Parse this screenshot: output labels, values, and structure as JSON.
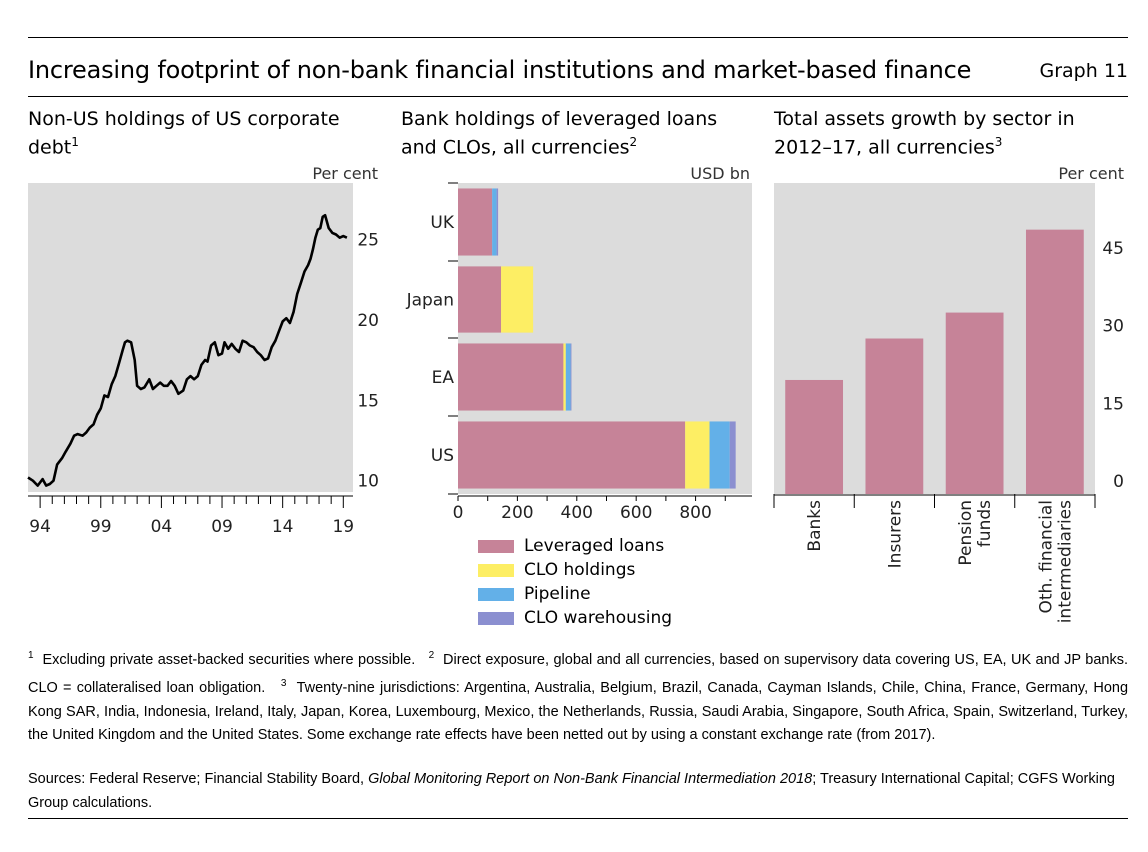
{
  "header": {
    "title": "Increasing footprint of non-bank financial institutions and market-based finance",
    "graph_label": "Graph 11"
  },
  "chart_data": [
    {
      "type": "line",
      "title": "Non-US holdings of US corporate debt",
      "title_footnote": "1",
      "unit": "Per cent",
      "x_ticks": [
        "94",
        "99",
        "04",
        "09",
        "14",
        "19"
      ],
      "xlim": [
        1993.0,
        2019.8
      ],
      "y_ticks": [
        "10",
        "15",
        "20",
        "25"
      ],
      "ylim": [
        9.3,
        28.5
      ],
      "grid": false,
      "series": [
        {
          "x": [
            1993.0,
            1993.4,
            1993.8,
            1994.2,
            1994.5,
            1994.8,
            1995.1,
            1995.4,
            1995.8,
            1996.1,
            1996.5,
            1996.8,
            1997.1,
            1997.5,
            1997.8,
            1998.1,
            1998.4,
            1998.7,
            1999.0,
            1999.3,
            1999.6,
            1999.9,
            2000.2,
            2000.5,
            2000.8,
            2001.0,
            2001.2,
            2001.5,
            2001.8,
            2002.0,
            2002.3,
            2002.6,
            2003.0,
            2003.3,
            2003.6,
            2003.9,
            2004.2,
            2004.5,
            2004.8,
            2005.1,
            2005.4,
            2005.8,
            2006.1,
            2006.4,
            2006.7,
            2007.0,
            2007.3,
            2007.6,
            2007.8,
            2008.1,
            2008.4,
            2008.7,
            2009.0,
            2009.2,
            2009.5,
            2009.8,
            2010.1,
            2010.4,
            2010.7,
            2011.0,
            2011.3,
            2011.6,
            2011.9,
            2012.2,
            2012.5,
            2012.8,
            2013.1,
            2013.4,
            2013.7,
            2014.0,
            2014.3,
            2014.6,
            2014.9,
            2015.2,
            2015.5,
            2015.8,
            2016.1,
            2016.3,
            2016.5,
            2016.7,
            2016.9,
            2017.1,
            2017.3,
            2017.5,
            2017.8,
            2018.1,
            2018.4,
            2018.7,
            2019.0,
            2019.3
          ],
          "y": [
            10.2,
            10.0,
            9.7,
            10.1,
            9.7,
            9.8,
            10.0,
            11.0,
            11.4,
            11.8,
            12.3,
            12.8,
            12.9,
            12.8,
            13.0,
            13.3,
            13.5,
            14.1,
            14.5,
            15.3,
            15.2,
            16.0,
            16.5,
            17.3,
            18.1,
            18.6,
            18.7,
            18.6,
            17.5,
            15.9,
            15.7,
            15.8,
            16.3,
            15.7,
            15.9,
            16.1,
            15.9,
            15.9,
            16.2,
            15.9,
            15.4,
            15.6,
            16.3,
            16.5,
            16.3,
            16.5,
            17.2,
            17.5,
            17.4,
            18.4,
            18.6,
            17.8,
            17.9,
            18.6,
            18.2,
            18.5,
            18.2,
            18.0,
            18.7,
            18.6,
            18.4,
            18.3,
            18.0,
            17.8,
            17.5,
            17.6,
            18.3,
            18.7,
            19.3,
            19.9,
            20.1,
            19.8,
            20.5,
            21.6,
            22.3,
            23.0,
            23.4,
            23.8,
            24.4,
            25.1,
            25.6,
            25.7,
            26.4,
            26.5,
            25.7,
            25.4,
            25.3,
            25.1,
            25.2,
            25.1
          ]
        }
      ]
    },
    {
      "type": "bar",
      "orientation": "horizontal",
      "stacked": true,
      "title": "Bank holdings of leveraged loans and CLOs, all currencies",
      "title_footnote": "2",
      "unit": "USD bn",
      "categories": [
        "UK",
        "Japan",
        "EA",
        "US"
      ],
      "x_ticks": [
        "0",
        "200",
        "400",
        "600",
        "800"
      ],
      "xlim": [
        0,
        990
      ],
      "series": [
        {
          "name": "Leveraged loans",
          "color": "#c68398",
          "values": [
            115,
            145,
            355,
            765
          ]
        },
        {
          "name": "CLO holdings",
          "color": "#fdee64",
          "values": [
            0,
            108,
            8,
            82
          ]
        },
        {
          "name": "Pipeline",
          "color": "#63b0e8",
          "values": [
            15,
            0,
            16,
            68
          ]
        },
        {
          "name": "CLO warehousing",
          "color": "#8b8fd0",
          "values": [
            5,
            0,
            3,
            20
          ]
        }
      ]
    },
    {
      "type": "bar",
      "title": "Total assets growth by sector in 2012–17, all currencies",
      "title_footnote": "3",
      "unit": "Per cent",
      "categories": [
        "Banks",
        "Insurers",
        "Pension funds",
        "Oth. financial intermediaries"
      ],
      "category_lines": [
        [
          "Banks"
        ],
        [
          "Insurers"
        ],
        [
          "Pension",
          "funds"
        ],
        [
          "Oth. financial",
          "intermediaries"
        ]
      ],
      "values": [
        19.5,
        27.5,
        32.5,
        48.5
      ],
      "color": "#c68398",
      "y_ticks": [
        "0",
        "15",
        "30",
        "45"
      ],
      "ylim": [
        -2.5,
        57.5
      ]
    }
  ],
  "footnotes": {
    "n1": "1",
    "t1": "Excluding private asset-backed securities where possible.",
    "n2": "2",
    "t2": "Direct exposure, global and all currencies, based on supervisory data covering US, EA, UK and JP banks. CLO = collateralised loan obligation.",
    "n3": "3",
    "t3": "Twenty-nine jurisdictions: Argentina, Australia, Belgium, Brazil, Canada, Cayman Islands, Chile, China, France, Germany, Hong Kong SAR, India, Indonesia, Ireland, Italy, Japan, Korea, Luxembourg, Mexico, the Netherlands, Russia, Saudi Arabia, Singapore, South Africa, Spain, Switzerland, Turkey, the United Kingdom and the United States. Some exchange rate effects have been netted out by using a constant exchange rate (from 2017)."
  },
  "sources": {
    "prefix": "Sources: Federal Reserve; Financial Stability Board, ",
    "report": "Global Monitoring Report on Non-Bank Financial Intermediation 2018",
    "suffix": "; Treasury International Capital; CGFS Working Group calculations."
  }
}
